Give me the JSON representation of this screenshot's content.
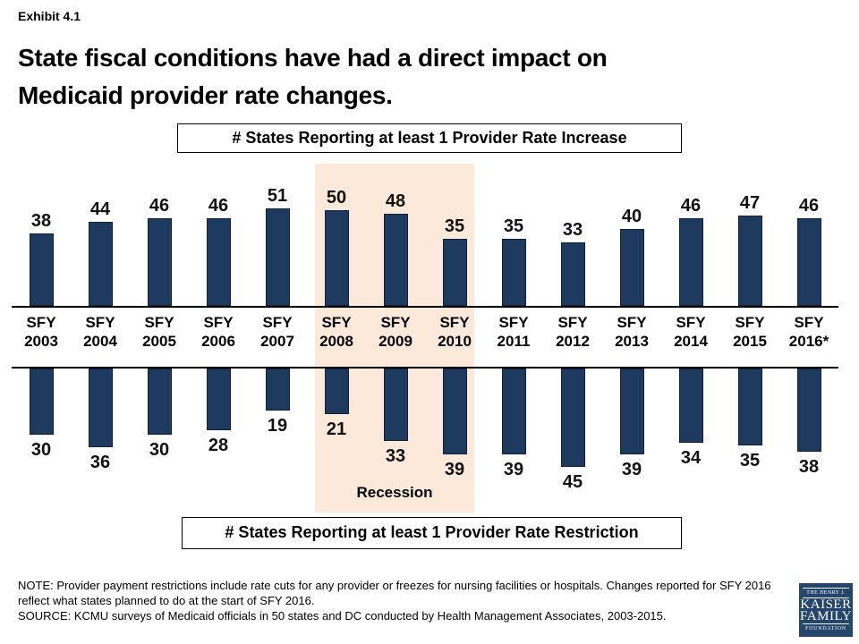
{
  "header": {
    "exhibit": "Exhibit 4.1",
    "title_line1": "State fiscal conditions have had a direct impact on",
    "title_line2": "Medicaid provider rate changes."
  },
  "chart_labels": {
    "increase_box": "# States Reporting at least 1 Provider Rate Increase",
    "restriction_box": "# States Reporting at least 1 Provider Rate Restriction",
    "recession": "Recession"
  },
  "chart_data": {
    "type": "bar",
    "orientation": "diverging-vertical",
    "categories": [
      "SFY 2003",
      "SFY 2004",
      "SFY 2005",
      "SFY 2006",
      "SFY 2007",
      "SFY 2008",
      "SFY 2009",
      "SFY 2010",
      "SFY 2011",
      "SFY 2012",
      "SFY 2013",
      "SFY 2014",
      "SFY 2015",
      "SFY 2016*"
    ],
    "series": [
      {
        "name": "# States Reporting at least 1 Provider Rate Increase",
        "direction": "up",
        "values": [
          38,
          44,
          46,
          46,
          51,
          50,
          48,
          35,
          35,
          33,
          40,
          46,
          47,
          46
        ]
      },
      {
        "name": "# States Reporting at least 1 Provider Rate Restriction",
        "direction": "down",
        "values": [
          30,
          36,
          30,
          28,
          19,
          21,
          33,
          39,
          39,
          45,
          39,
          34,
          35,
          38
        ]
      }
    ],
    "annotation": {
      "label": "Recession",
      "span_categories": [
        "SFY 2008",
        "SFY 2009",
        "SFY 2010"
      ]
    },
    "colors": {
      "bar": "#1F3A5F",
      "recession_band": "#FDE9D9",
      "axis_line": "#000000"
    },
    "value_labels": "shown",
    "grid": "off",
    "legend_position": "boxed labels above and below chart"
  },
  "footer": {
    "note": "NOTE: Provider payment restrictions include rate cuts for any provider or freezes for nursing facilities or hospitals. Changes reported for SFY 2016 reflect what states planned to do at the start of SFY 2016.",
    "source": "SOURCE: KCMU surveys of Medicaid officials in 50 states and DC conducted by Health Management Associates, 2003-2015."
  },
  "logo": {
    "line1": "THE HENRY J.",
    "line2": "KAISER",
    "line3": "FAMILY",
    "line4": "FOUNDATION"
  }
}
